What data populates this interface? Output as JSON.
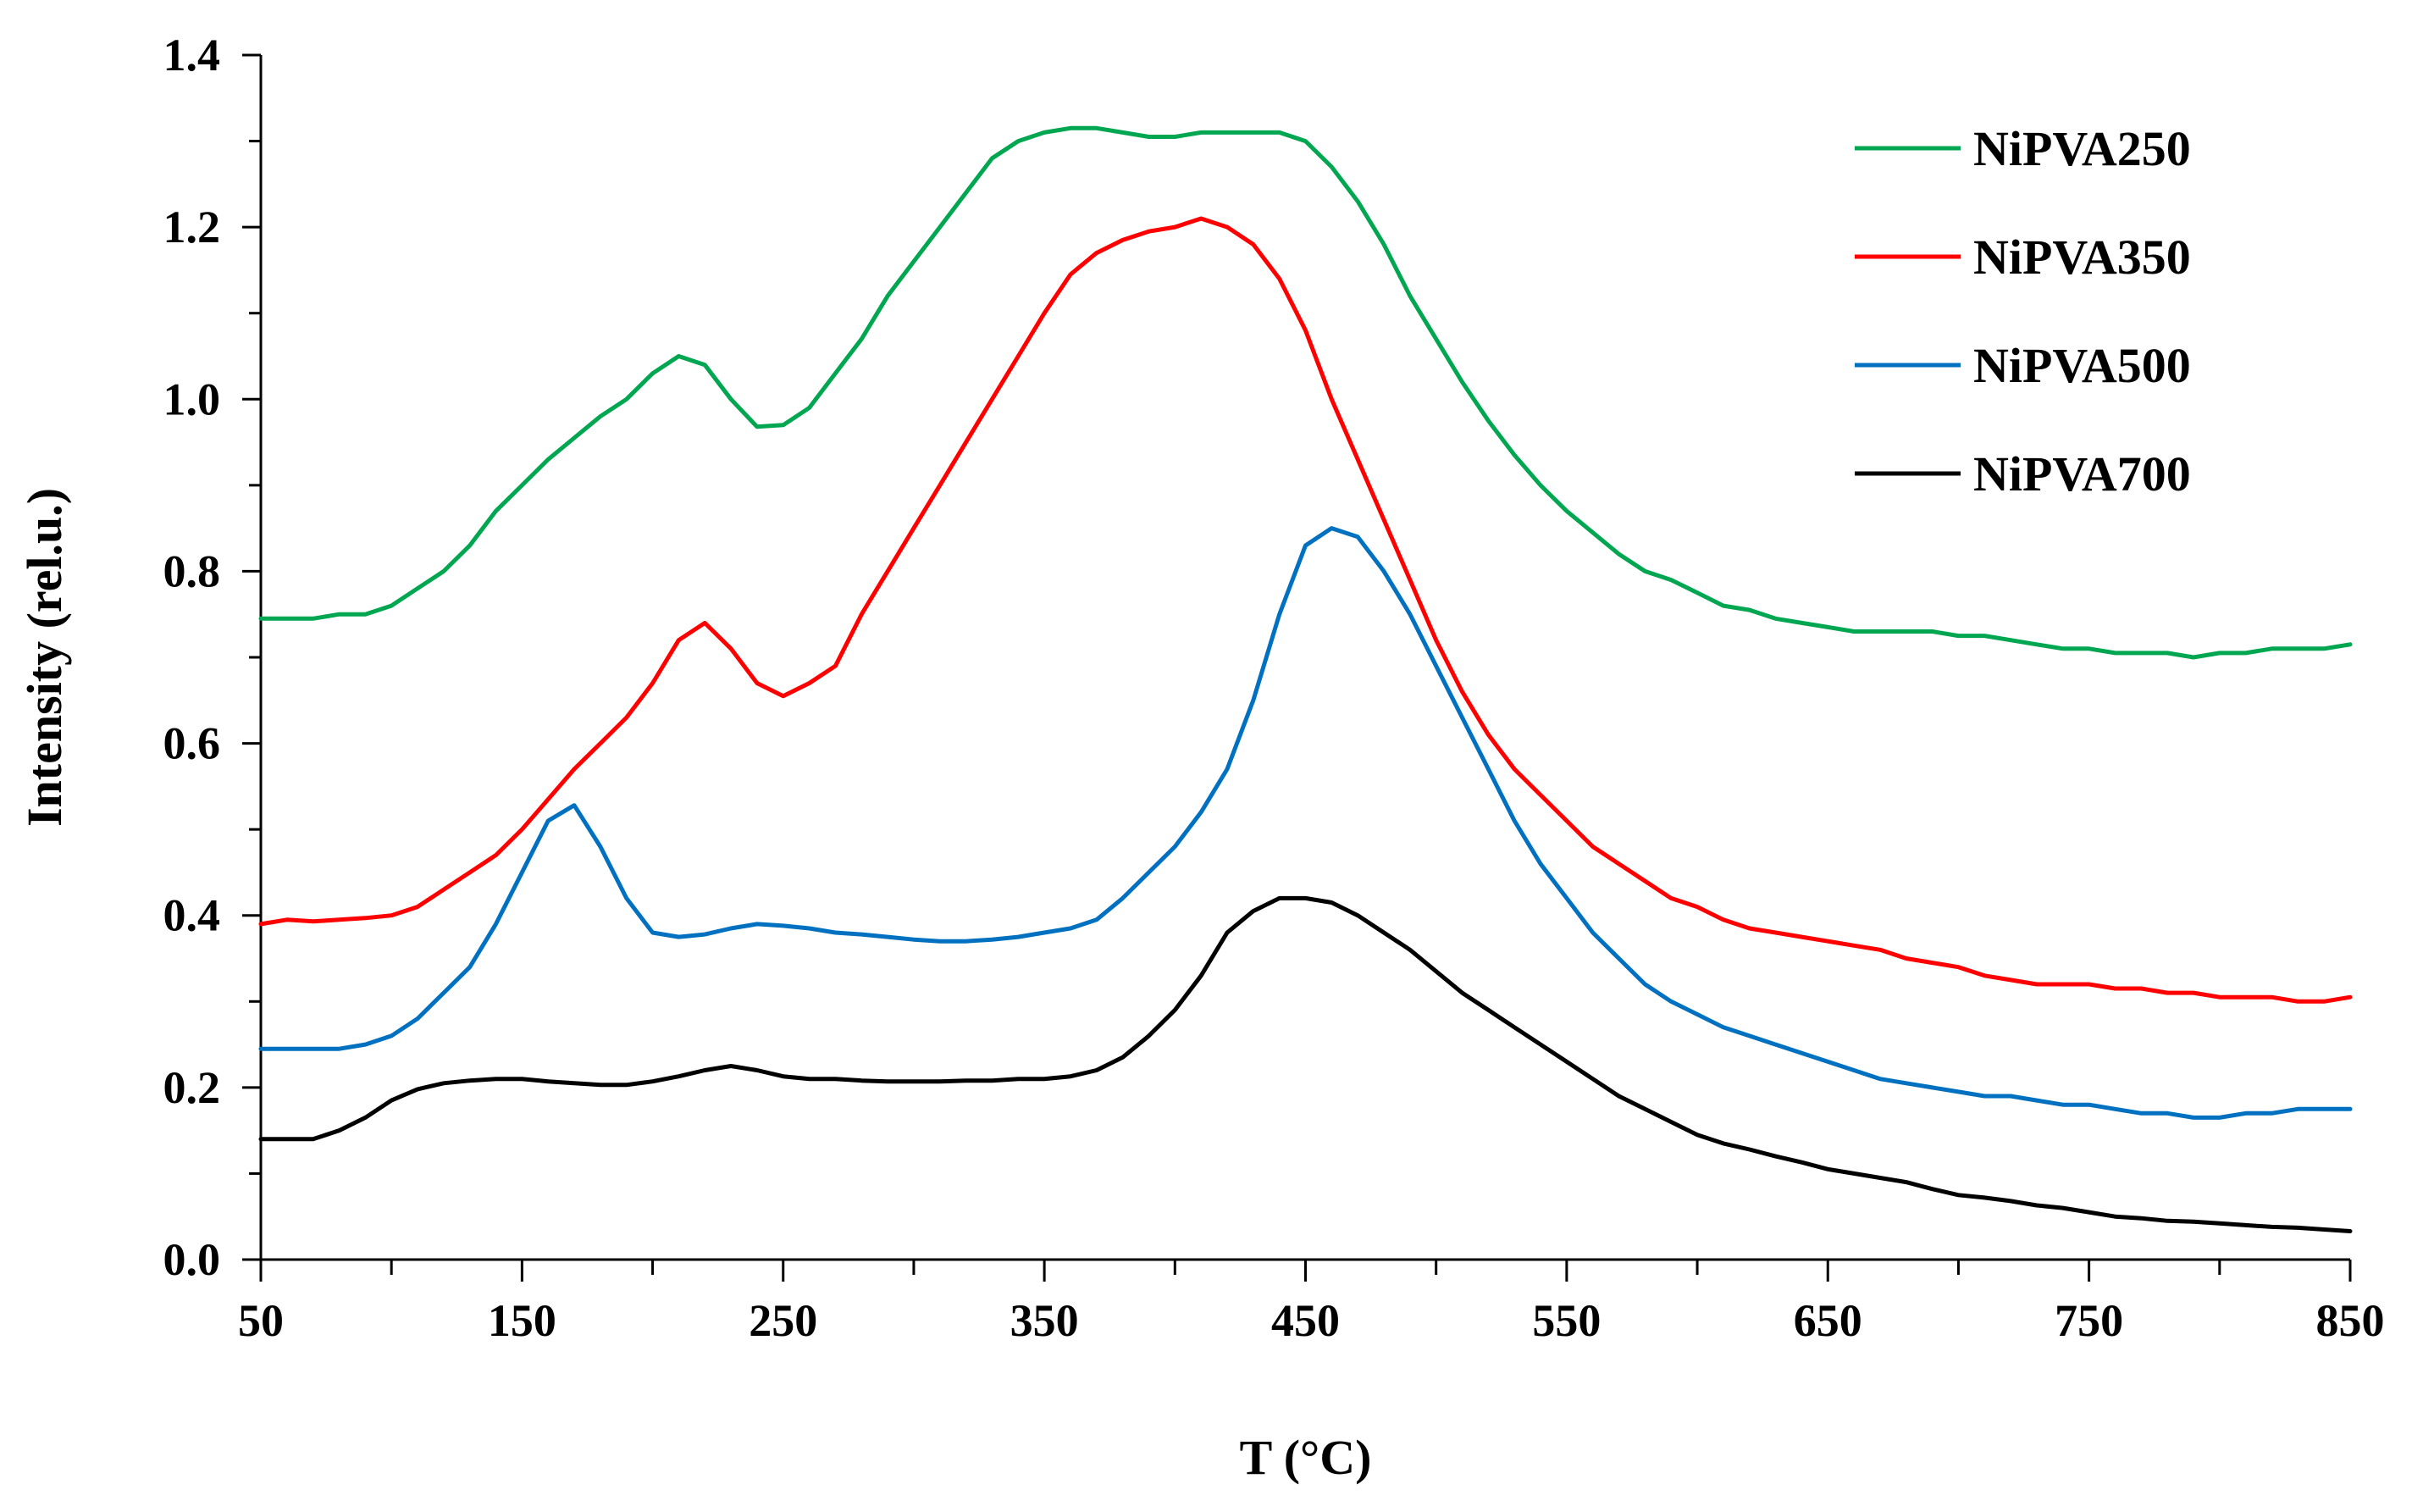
{
  "chart_data": {
    "type": "line",
    "title": "",
    "xlabel": "T (°C)",
    "ylabel": "Intensity (rel.u.)",
    "xlim": [
      50,
      850
    ],
    "ylim": [
      0,
      1.4
    ],
    "xticks": [
      "50",
      "150",
      "250",
      "350",
      "450",
      "550",
      "650",
      "750",
      "850"
    ],
    "xtick_values": [
      50,
      150,
      250,
      350,
      450,
      550,
      650,
      750,
      850
    ],
    "yticks": [
      "0.0",
      "0.2",
      "0.4",
      "0.6",
      "0.8",
      "1.0",
      "1.2",
      "1.4"
    ],
    "ytick_values": [
      0,
      0.2,
      0.4,
      0.6,
      0.8,
      1.0,
      1.2,
      1.4
    ],
    "legend_position": "top-right",
    "grid": false,
    "series": [
      {
        "name": "NiPVA250",
        "color": "#00a650",
        "x": [
          50,
          60,
          70,
          80,
          90,
          100,
          110,
          120,
          130,
          140,
          150,
          160,
          170,
          180,
          190,
          200,
          210,
          220,
          230,
          240,
          250,
          260,
          270,
          280,
          290,
          300,
          310,
          320,
          330,
          340,
          350,
          360,
          370,
          380,
          390,
          400,
          410,
          420,
          430,
          440,
          450,
          460,
          470,
          480,
          490,
          500,
          510,
          520,
          530,
          540,
          550,
          560,
          570,
          580,
          590,
          600,
          610,
          620,
          630,
          640,
          650,
          660,
          670,
          680,
          690,
          700,
          710,
          720,
          730,
          740,
          750,
          760,
          770,
          780,
          790,
          800,
          810,
          820,
          830,
          840,
          850
        ],
        "y": [
          0.745,
          0.745,
          0.745,
          0.75,
          0.75,
          0.76,
          0.78,
          0.8,
          0.83,
          0.87,
          0.9,
          0.93,
          0.955,
          0.98,
          1.0,
          1.03,
          1.05,
          1.04,
          1.0,
          0.968,
          0.97,
          0.99,
          1.03,
          1.07,
          1.12,
          1.16,
          1.2,
          1.24,
          1.28,
          1.3,
          1.31,
          1.315,
          1.315,
          1.31,
          1.305,
          1.305,
          1.31,
          1.31,
          1.31,
          1.31,
          1.3,
          1.27,
          1.23,
          1.18,
          1.12,
          1.07,
          1.02,
          0.975,
          0.935,
          0.9,
          0.87,
          0.845,
          0.82,
          0.8,
          0.79,
          0.775,
          0.76,
          0.755,
          0.745,
          0.74,
          0.735,
          0.73,
          0.73,
          0.73,
          0.73,
          0.725,
          0.725,
          0.72,
          0.715,
          0.71,
          0.71,
          0.705,
          0.705,
          0.705,
          0.7,
          0.705,
          0.705,
          0.71,
          0.71,
          0.71,
          0.715
        ]
      },
      {
        "name": "NiPVA350",
        "color": "#ff0000",
        "x": [
          50,
          60,
          70,
          80,
          90,
          100,
          110,
          120,
          130,
          140,
          150,
          160,
          170,
          180,
          190,
          200,
          210,
          220,
          230,
          240,
          250,
          260,
          270,
          280,
          290,
          300,
          310,
          320,
          330,
          340,
          350,
          360,
          370,
          380,
          390,
          400,
          410,
          420,
          430,
          440,
          450,
          460,
          470,
          480,
          490,
          500,
          510,
          520,
          530,
          540,
          550,
          560,
          570,
          580,
          590,
          600,
          610,
          620,
          630,
          640,
          650,
          660,
          670,
          680,
          690,
          700,
          710,
          720,
          730,
          740,
          750,
          760,
          770,
          780,
          790,
          800,
          810,
          820,
          830,
          840,
          850
        ],
        "y": [
          0.39,
          0.395,
          0.393,
          0.395,
          0.397,
          0.4,
          0.41,
          0.43,
          0.45,
          0.47,
          0.5,
          0.535,
          0.57,
          0.6,
          0.63,
          0.67,
          0.72,
          0.74,
          0.71,
          0.67,
          0.655,
          0.67,
          0.69,
          0.75,
          0.8,
          0.85,
          0.9,
          0.95,
          1.0,
          1.05,
          1.1,
          1.145,
          1.17,
          1.185,
          1.195,
          1.2,
          1.21,
          1.2,
          1.18,
          1.14,
          1.08,
          1.0,
          0.93,
          0.86,
          0.79,
          0.72,
          0.66,
          0.61,
          0.57,
          0.54,
          0.51,
          0.48,
          0.46,
          0.44,
          0.42,
          0.41,
          0.395,
          0.385,
          0.38,
          0.375,
          0.37,
          0.365,
          0.36,
          0.35,
          0.345,
          0.34,
          0.33,
          0.325,
          0.32,
          0.32,
          0.32,
          0.315,
          0.315,
          0.31,
          0.31,
          0.305,
          0.305,
          0.305,
          0.3,
          0.3,
          0.305
        ]
      },
      {
        "name": "NiPVA500",
        "color": "#0070c0",
        "x": [
          50,
          60,
          70,
          80,
          90,
          100,
          110,
          120,
          130,
          140,
          150,
          160,
          170,
          180,
          190,
          200,
          210,
          220,
          230,
          240,
          250,
          260,
          270,
          280,
          290,
          300,
          310,
          320,
          330,
          340,
          350,
          360,
          370,
          380,
          390,
          400,
          410,
          420,
          430,
          440,
          450,
          460,
          470,
          480,
          490,
          500,
          510,
          520,
          530,
          540,
          550,
          560,
          570,
          580,
          590,
          600,
          610,
          620,
          630,
          640,
          650,
          660,
          670,
          680,
          690,
          700,
          710,
          720,
          730,
          740,
          750,
          760,
          770,
          780,
          790,
          800,
          810,
          820,
          830,
          840,
          850
        ],
        "y": [
          0.245,
          0.245,
          0.245,
          0.245,
          0.25,
          0.26,
          0.28,
          0.31,
          0.34,
          0.39,
          0.45,
          0.51,
          0.528,
          0.48,
          0.42,
          0.38,
          0.375,
          0.378,
          0.385,
          0.39,
          0.388,
          0.385,
          0.38,
          0.378,
          0.375,
          0.372,
          0.37,
          0.37,
          0.372,
          0.375,
          0.38,
          0.385,
          0.395,
          0.42,
          0.45,
          0.48,
          0.52,
          0.57,
          0.65,
          0.75,
          0.83,
          0.85,
          0.84,
          0.8,
          0.75,
          0.69,
          0.63,
          0.57,
          0.51,
          0.46,
          0.42,
          0.38,
          0.35,
          0.32,
          0.3,
          0.285,
          0.27,
          0.26,
          0.25,
          0.24,
          0.23,
          0.22,
          0.21,
          0.205,
          0.2,
          0.195,
          0.19,
          0.19,
          0.185,
          0.18,
          0.18,
          0.175,
          0.17,
          0.17,
          0.165,
          0.165,
          0.17,
          0.17,
          0.175,
          0.175,
          0.175
        ]
      },
      {
        "name": "NiPVA700",
        "color": "#000000",
        "x": [
          50,
          60,
          70,
          80,
          90,
          100,
          110,
          120,
          130,
          140,
          150,
          160,
          170,
          180,
          190,
          200,
          210,
          220,
          230,
          240,
          250,
          260,
          270,
          280,
          290,
          300,
          310,
          320,
          330,
          340,
          350,
          360,
          370,
          380,
          390,
          400,
          410,
          420,
          430,
          440,
          450,
          460,
          470,
          480,
          490,
          500,
          510,
          520,
          530,
          540,
          550,
          560,
          570,
          580,
          590,
          600,
          610,
          620,
          630,
          640,
          650,
          660,
          670,
          680,
          690,
          700,
          710,
          720,
          730,
          740,
          750,
          760,
          770,
          780,
          790,
          800,
          810,
          820,
          830,
          840,
          850
        ],
        "y": [
          0.14,
          0.14,
          0.14,
          0.15,
          0.165,
          0.185,
          0.198,
          0.205,
          0.208,
          0.21,
          0.21,
          0.207,
          0.205,
          0.203,
          0.203,
          0.207,
          0.213,
          0.22,
          0.225,
          0.22,
          0.213,
          0.21,
          0.21,
          0.208,
          0.207,
          0.207,
          0.207,
          0.208,
          0.208,
          0.21,
          0.21,
          0.213,
          0.22,
          0.235,
          0.26,
          0.29,
          0.33,
          0.38,
          0.405,
          0.42,
          0.42,
          0.415,
          0.4,
          0.38,
          0.36,
          0.335,
          0.31,
          0.29,
          0.27,
          0.25,
          0.23,
          0.21,
          0.19,
          0.175,
          0.16,
          0.145,
          0.135,
          0.128,
          0.12,
          0.113,
          0.105,
          0.1,
          0.095,
          0.09,
          0.082,
          0.075,
          0.072,
          0.068,
          0.063,
          0.06,
          0.055,
          0.05,
          0.048,
          0.045,
          0.044,
          0.042,
          0.04,
          0.038,
          0.037,
          0.035,
          0.033
        ]
      }
    ]
  }
}
